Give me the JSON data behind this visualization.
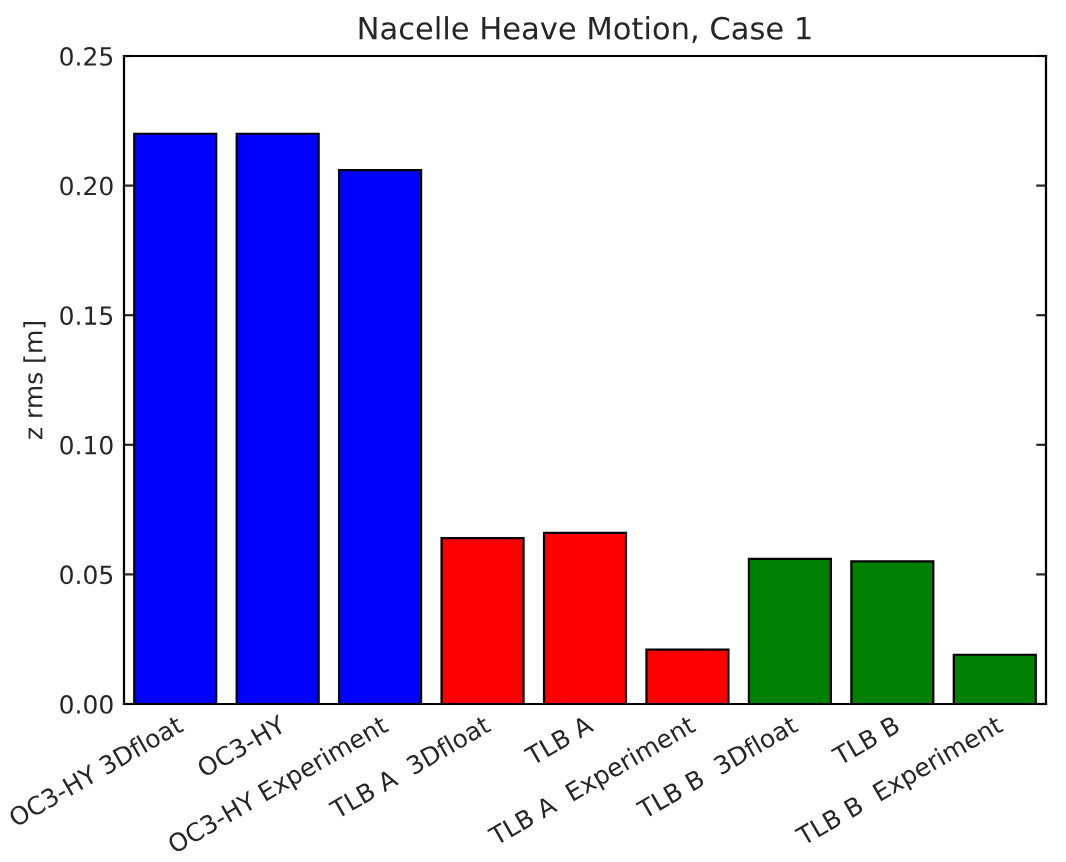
{
  "chart_data": {
    "type": "bar",
    "title": "Nacelle Heave Motion, Case 1",
    "ylabel": "z rms [m]",
    "categories": [
      "OC3-HY 3Dfloat",
      "OC3-HY",
      "OC3-HY Experiment",
      "TLB A  3Dfloat",
      "TLB A",
      "TLB A  Experiment",
      "TLB B  3Dfloat",
      "TLB B",
      "TLB B  Experiment"
    ],
    "values": [
      0.22,
      0.22,
      0.206,
      0.064,
      0.066,
      0.021,
      0.056,
      0.055,
      0.019
    ],
    "colors": [
      "#0000ff",
      "#0000ff",
      "#0000ff",
      "#ff0000",
      "#ff0000",
      "#ff0000",
      "#008000",
      "#008000",
      "#008000"
    ],
    "ylim": [
      0,
      0.25
    ],
    "yticks": [
      {
        "value": 0,
        "label": "0.00"
      },
      {
        "value": 0.05,
        "label": "0.05"
      },
      {
        "value": 0.1,
        "label": "0.10"
      },
      {
        "value": 0.15,
        "label": "0.15"
      },
      {
        "value": 0.2,
        "label": "0.20"
      },
      {
        "value": 0.25,
        "label": "0.25"
      }
    ],
    "grid": false
  }
}
